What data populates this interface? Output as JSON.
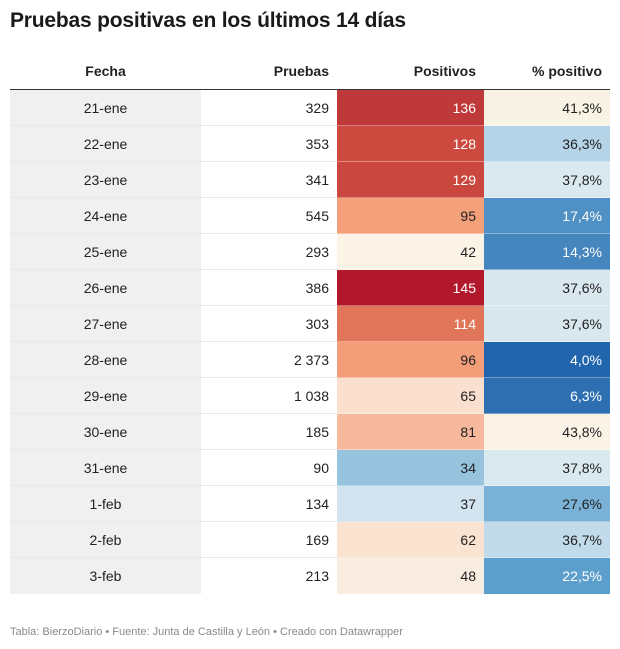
{
  "title": "Pruebas positivas en los últimos 14 días",
  "footer": "Tabla: BierzoDiario • Fuente: Junta de Castilla y León • Creado con Datawrapper",
  "chart_data": {
    "type": "table",
    "columns": [
      "Fecha",
      "Pruebas",
      "Positivos",
      "% positivo"
    ],
    "rows": [
      {
        "fecha": "21-ene",
        "pruebas": "329",
        "positivos": "136",
        "pct": "41,3%",
        "positivos_color": "#c0393a",
        "pct_color": "#f9f3e6"
      },
      {
        "fecha": "22-ene",
        "pruebas": "353",
        "positivos": "128",
        "pct": "36,3%",
        "positivos_color": "#cc4a3f",
        "pct_color": "#b6d4e8"
      },
      {
        "fecha": "23-ene",
        "pruebas": "341",
        "positivos": "129",
        "pct": "37,8%",
        "positivos_color": "#ca473f",
        "pct_color": "#dae8ef"
      },
      {
        "fecha": "24-ene",
        "pruebas": "545",
        "positivos": "95",
        "pct": "17,4%",
        "positivos_color": "#f4a07b",
        "pct_color": "#4f91c4"
      },
      {
        "fecha": "25-ene",
        "pruebas": "293",
        "positivos": "42",
        "pct": "14,3%",
        "positivos_color": "#fbf3e6",
        "pct_color": "#4686be"
      },
      {
        "fecha": "26-ene",
        "pruebas": "386",
        "positivos": "145",
        "pct": "37,6%",
        "positivos_color": "#b2182b",
        "pct_color": "#d9e7ef"
      },
      {
        "fecha": "27-ene",
        "pruebas": "303",
        "positivos": "114",
        "pct": "37,6%",
        "positivos_color": "#e0755a",
        "pct_color": "#d9e7ef"
      },
      {
        "fecha": "28-ene",
        "pruebas": "2 373",
        "positivos": "96",
        "pct": "4,0%",
        "positivos_color": "#f49e79",
        "pct_color": "#2166ac"
      },
      {
        "fecha": "29-ene",
        "pruebas": "1 038",
        "positivos": "65",
        "pct": "6,3%",
        "positivos_color": "#fbdfcf",
        "pct_color": "#2d6fb0"
      },
      {
        "fecha": "30-ene",
        "pruebas": "185",
        "positivos": "81",
        "pct": "43,8%",
        "positivos_color": "#f7b99e",
        "pct_color": "#fbf3e6"
      },
      {
        "fecha": "31-ene",
        "pruebas": "90",
        "positivos": "34",
        "pct": "37,8%",
        "positivos_color": "#97c3df",
        "pct_color": "#dae8ef"
      },
      {
        "fecha": "1-feb",
        "pruebas": "134",
        "positivos": "37",
        "pct": "27,6%",
        "positivos_color": "#d2e4ef",
        "pct_color": "#7ab1d6"
      },
      {
        "fecha": "2-feb",
        "pruebas": "169",
        "positivos": "62",
        "pct": "36,7%",
        "positivos_color": "#fbe3d1",
        "pct_color": "#c2dbea"
      },
      {
        "fecha": "3-feb",
        "pruebas": "213",
        "positivos": "48",
        "pct": "22,5%",
        "positivos_color": "#f9ece0",
        "pct_color": "#5d9fcc"
      }
    ]
  }
}
